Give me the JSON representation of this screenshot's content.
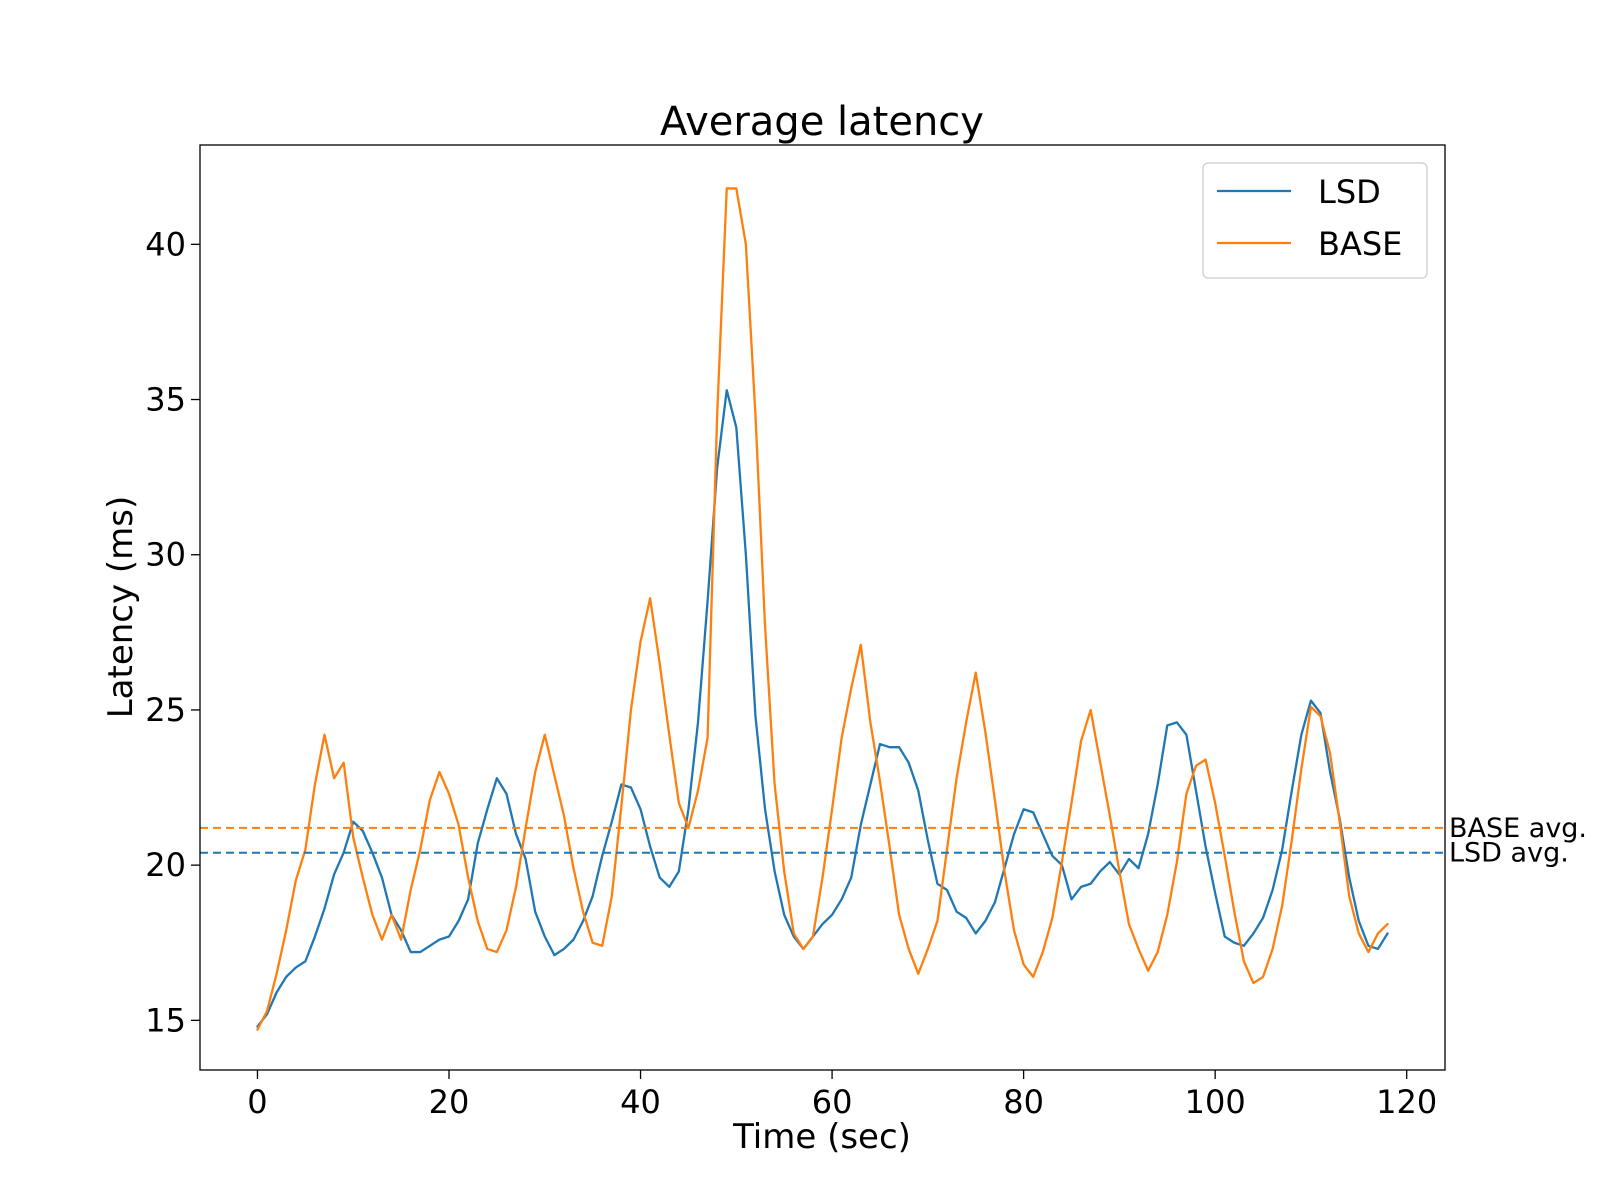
{
  "chart_data": {
    "type": "line",
    "title": "Average latency",
    "xlabel": "Time (sec)",
    "ylabel": "Latency (ms)",
    "xlim": [
      -6,
      124
    ],
    "ylim": [
      13.4,
      43.2
    ],
    "xticks": [
      0,
      20,
      40,
      60,
      80,
      100,
      120
    ],
    "yticks": [
      15,
      20,
      25,
      30,
      35,
      40
    ],
    "grid": false,
    "legend_position": "top-right",
    "colors": {
      "LSD": "#1f77b4",
      "BASE": "#ff7f0e",
      "axes": "#000000"
    },
    "series": [
      {
        "name": "LSD",
        "x": [
          0,
          1,
          2,
          3,
          4,
          5,
          6,
          7,
          8,
          9,
          10,
          11,
          12,
          13,
          14,
          15,
          16,
          17,
          18,
          19,
          20,
          21,
          22,
          23,
          24,
          25,
          26,
          27,
          28,
          29,
          30,
          31,
          32,
          33,
          34,
          35,
          36,
          37,
          38,
          39,
          40,
          41,
          42,
          43,
          44,
          45,
          46,
          47,
          48,
          49,
          50,
          51,
          52,
          53,
          54,
          55,
          56,
          57,
          58,
          59,
          60,
          61,
          62,
          63,
          64,
          65,
          66,
          67,
          68,
          69,
          70,
          71,
          72,
          73,
          74,
          75,
          76,
          77,
          78,
          79,
          80,
          81,
          82,
          83,
          84,
          85,
          86,
          87,
          88,
          89,
          90,
          91,
          92,
          93,
          94,
          95,
          96,
          97,
          98,
          99,
          100,
          101,
          102,
          103,
          104,
          105,
          106,
          107,
          108,
          109,
          110,
          111,
          112,
          113,
          114,
          115,
          116,
          117,
          118
        ],
        "values": [
          14.8,
          15.2,
          15.9,
          16.4,
          16.7,
          16.9,
          17.7,
          18.6,
          19.7,
          20.4,
          21.4,
          21.1,
          20.4,
          19.6,
          18.4,
          17.9,
          17.2,
          17.2,
          17.4,
          17.6,
          17.7,
          18.2,
          18.9,
          20.7,
          21.8,
          22.8,
          22.3,
          21.0,
          20.2,
          18.5,
          17.7,
          17.1,
          17.3,
          17.6,
          18.2,
          19.0,
          20.3,
          21.4,
          22.6,
          22.5,
          21.8,
          20.6,
          19.6,
          19.3,
          19.8,
          21.8,
          24.6,
          28.5,
          32.8,
          35.3,
          34.1,
          30.0,
          24.8,
          21.8,
          19.8,
          18.4,
          17.7,
          17.3,
          17.7,
          18.1,
          18.4,
          18.9,
          19.6,
          21.3,
          22.6,
          23.9,
          23.8,
          23.8,
          23.3,
          22.4,
          20.8,
          19.4,
          19.2,
          18.5,
          18.3,
          17.8,
          18.2,
          18.8,
          19.9,
          21.0,
          21.8,
          21.7,
          21.0,
          20.3,
          20.0,
          18.9,
          19.3,
          19.4,
          19.8,
          20.1,
          19.7,
          20.2,
          19.9,
          21.0,
          22.6,
          24.5,
          24.6,
          24.2,
          22.4,
          20.6,
          19.1,
          17.7,
          17.5,
          17.4,
          17.8,
          18.3,
          19.2,
          20.5,
          22.4,
          24.2,
          25.3,
          24.9,
          23.0,
          21.5,
          19.6,
          18.2,
          17.4,
          17.3,
          17.8
        ]
      },
      {
        "name": "BASE",
        "x": [
          0,
          1,
          2,
          3,
          4,
          5,
          6,
          7,
          8,
          9,
          10,
          11,
          12,
          13,
          14,
          15,
          16,
          17,
          18,
          19,
          20,
          21,
          22,
          23,
          24,
          25,
          26,
          27,
          28,
          29,
          30,
          31,
          32,
          33,
          34,
          35,
          36,
          37,
          38,
          39,
          40,
          41,
          42,
          43,
          44,
          45,
          46,
          47,
          48,
          49,
          50,
          51,
          52,
          53,
          54,
          55,
          56,
          57,
          58,
          59,
          60,
          61,
          62,
          63,
          64,
          65,
          66,
          67,
          68,
          69,
          70,
          71,
          72,
          73,
          74,
          75,
          76,
          77,
          78,
          79,
          80,
          81,
          82,
          83,
          84,
          85,
          86,
          87,
          88,
          89,
          90,
          91,
          92,
          93,
          94,
          95,
          96,
          97,
          98,
          99,
          100,
          101,
          102,
          103,
          104,
          105,
          106,
          107,
          108,
          109,
          110,
          111,
          112,
          113,
          114,
          115,
          116,
          117,
          118
        ],
        "values": [
          14.7,
          15.3,
          16.5,
          17.9,
          19.5,
          20.5,
          22.6,
          24.2,
          22.8,
          23.3,
          20.9,
          19.6,
          18.4,
          17.6,
          18.4,
          17.6,
          19.2,
          20.5,
          22.1,
          23.0,
          22.3,
          21.3,
          19.6,
          18.2,
          17.3,
          17.2,
          17.9,
          19.3,
          21.2,
          23.0,
          24.2,
          22.9,
          21.6,
          19.9,
          18.5,
          17.5,
          17.4,
          19.0,
          21.9,
          25.0,
          27.2,
          28.6,
          26.5,
          24.2,
          22.0,
          21.2,
          22.4,
          24.1,
          34.5,
          41.8,
          41.8,
          40.0,
          34.5,
          27.7,
          22.6,
          19.8,
          17.8,
          17.3,
          17.7,
          19.6,
          21.8,
          24.1,
          25.7,
          27.1,
          24.6,
          22.7,
          20.6,
          18.4,
          17.3,
          16.5,
          17.3,
          18.2,
          20.5,
          22.8,
          24.6,
          26.2,
          24.3,
          22.1,
          19.8,
          17.9,
          16.8,
          16.4,
          17.2,
          18.3,
          20.1,
          22.0,
          24.0,
          25.0,
          23.3,
          21.6,
          19.8,
          18.1,
          17.3,
          16.6,
          17.2,
          18.4,
          20.1,
          22.3,
          23.2,
          23.4,
          22.0,
          20.3,
          18.5,
          16.9,
          16.2,
          16.4,
          17.3,
          18.7,
          20.8,
          23.1,
          25.1,
          24.8,
          23.6,
          21.4,
          19.0,
          17.8,
          17.2,
          17.8,
          18.1
        ]
      }
    ],
    "reference_lines": [
      {
        "label": "BASE avg.",
        "value": 21.2,
        "series": "BASE"
      },
      {
        "label": "LSD avg.",
        "value": 20.4,
        "series": "LSD"
      }
    ]
  }
}
